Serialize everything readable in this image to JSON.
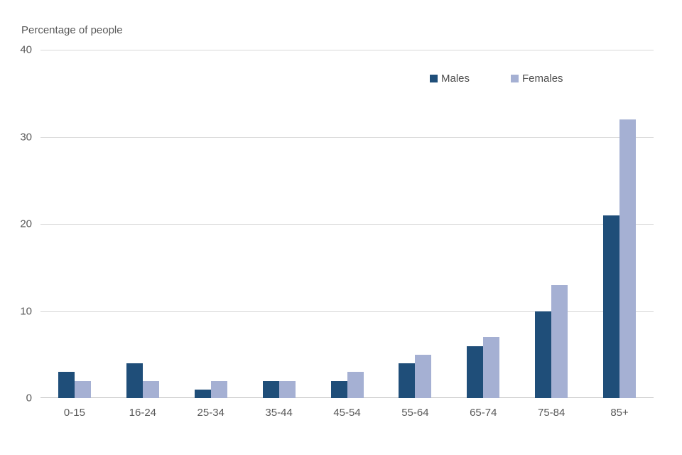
{
  "chart_data": {
    "type": "bar",
    "title": "Percentage of people",
    "categories": [
      "0-15",
      "16-24",
      "25-34",
      "35-44",
      "45-54",
      "55-64",
      "65-74",
      "75-84",
      "85+"
    ],
    "series": [
      {
        "name": "Males",
        "color": "#1f4e79",
        "values": [
          3,
          4,
          1,
          2,
          2,
          4,
          6,
          10,
          21
        ]
      },
      {
        "name": "Females",
        "color": "#a5b0d3",
        "values": [
          2,
          2,
          2,
          2,
          3,
          5,
          7,
          13,
          32
        ]
      }
    ],
    "xlabel": "",
    "ylabel": "Percentage of people",
    "ylim": [
      0,
      40
    ],
    "yticks": [
      0,
      10,
      20,
      30,
      40
    ],
    "grid": true,
    "legend_position": "top-right-inside",
    "colors": {
      "gridline": "#d9d9d9",
      "axis_line": "#bfbfbf",
      "text": "#595959"
    }
  }
}
